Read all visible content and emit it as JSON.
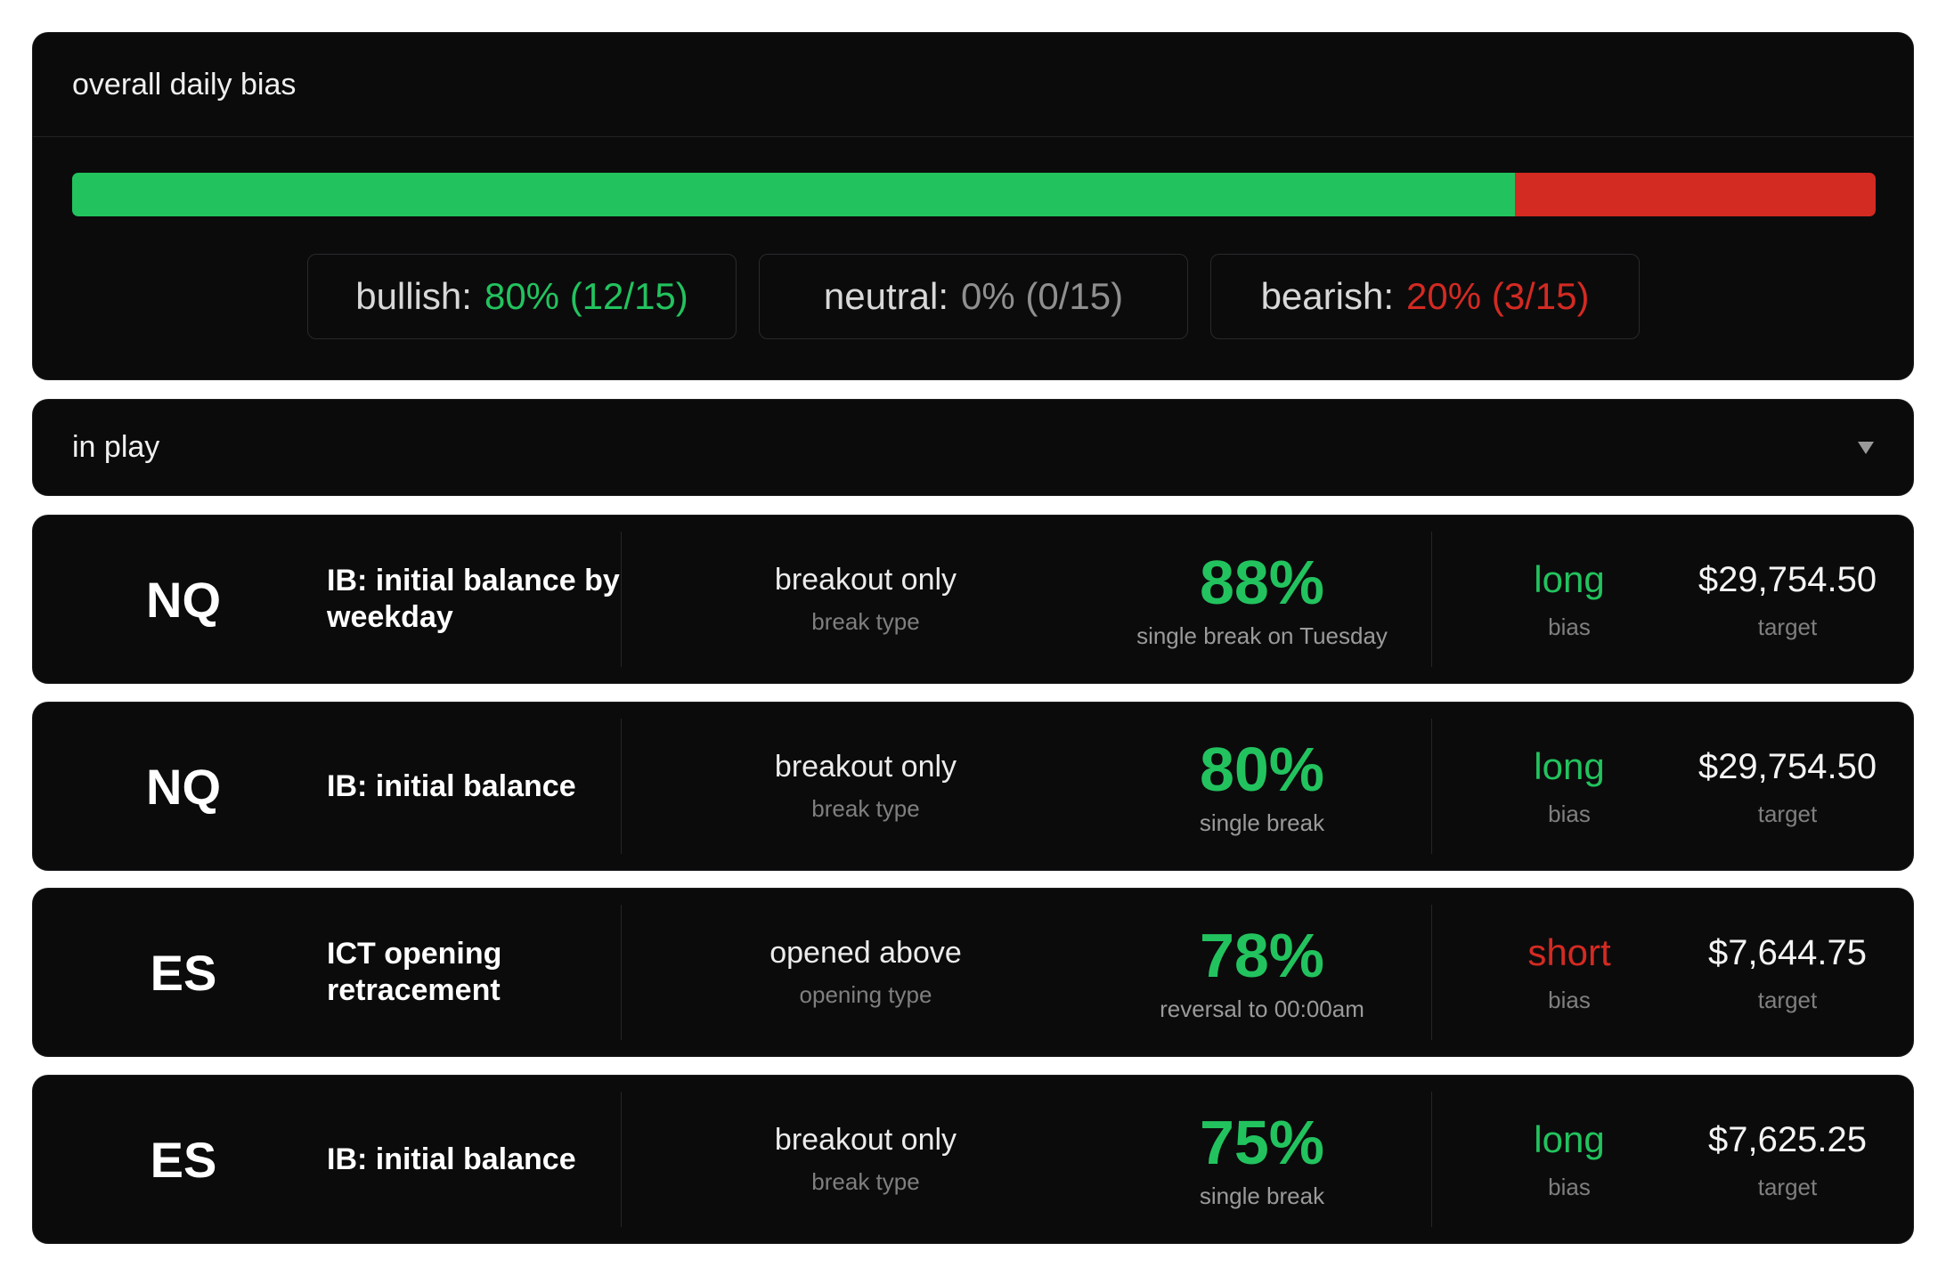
{
  "overall": {
    "title": "overall daily bias",
    "bar": {
      "bullish_fraction": 0.8,
      "neutral_fraction": 0.0,
      "bearish_fraction": 0.2
    },
    "bullish": {
      "label": "bullish:",
      "value": "80% (12/15)"
    },
    "neutral": {
      "label": "neutral:",
      "value": "0% (0/15)"
    },
    "bearish": {
      "label": "bearish:",
      "value": "20% (3/15)"
    }
  },
  "in_play": {
    "label": "in play",
    "icon": "chevron-down-icon"
  },
  "colors": {
    "bullish": "#22c35e",
    "bearish": "#d32a22",
    "background": "#0b0b0c"
  },
  "rows": [
    {
      "symbol": "NQ",
      "setup": "IB: initial balance by weekday",
      "type_value": "breakout only",
      "type_label": "break type",
      "probability": "88%",
      "probability_label": "single break on Tuesday",
      "bias": "long",
      "bias_label": "bias",
      "target": "$29,754.50",
      "target_label": "target"
    },
    {
      "symbol": "NQ",
      "setup": "IB: initial balance",
      "type_value": "breakout only",
      "type_label": "break type",
      "probability": "80%",
      "probability_label": "single break",
      "bias": "long",
      "bias_label": "bias",
      "target": "$29,754.50",
      "target_label": "target"
    },
    {
      "symbol": "ES",
      "setup": "ICT opening retracement",
      "type_value": "opened above",
      "type_label": "opening type",
      "probability": "78%",
      "probability_label": "reversal to 00:00am",
      "bias": "short",
      "bias_label": "bias",
      "target": "$7,644.75",
      "target_label": "target"
    },
    {
      "symbol": "ES",
      "setup": "IB: initial balance",
      "type_value": "breakout only",
      "type_label": "break type",
      "probability": "75%",
      "probability_label": "single break",
      "bias": "long",
      "bias_label": "bias",
      "target": "$7,625.25",
      "target_label": "target"
    }
  ]
}
